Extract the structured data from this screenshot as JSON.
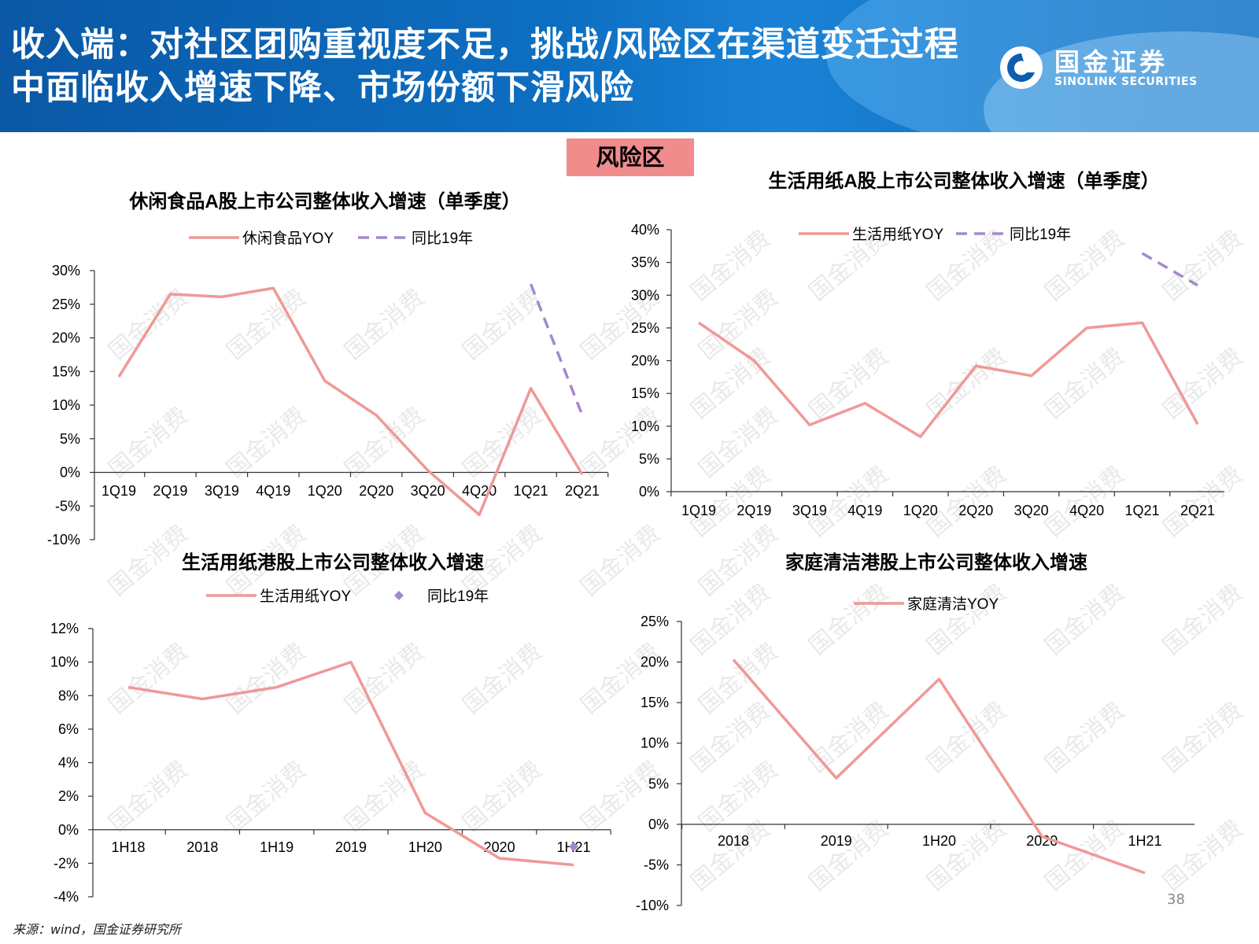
{
  "header": {
    "title": "收入端：对社区团购重视度不足，挑战/风险区在渠道变迁过程中面临收入增速下降、市场份额下滑风险",
    "logo_cn": "国金证券",
    "logo_en": "SINOLINK SECURITIES"
  },
  "risk_label": "风险区",
  "watermark": "国金消费",
  "source": "来源：wind，国金证券研究所",
  "page_number": "38",
  "colors": {
    "main_line": "#f09898",
    "compare_line": "#a488cc",
    "header": "#0b5fae",
    "risk_badge": "#f08c8c"
  },
  "chart_data": [
    {
      "type": "line",
      "title": "休闲食品A股上市公司整体收入增速（单季度）",
      "categories": [
        "1Q19",
        "2Q19",
        "3Q19",
        "4Q19",
        "1Q20",
        "2Q20",
        "3Q20",
        "4Q20",
        "1Q21",
        "2Q21"
      ],
      "yticks": [
        "30%",
        "25%",
        "20%",
        "15%",
        "10%",
        "5%",
        "0%",
        "-5%",
        "-10%"
      ],
      "ylim": [
        -10,
        30
      ],
      "series": [
        {
          "name": "休闲食品YOY",
          "style": "solid",
          "values": [
            14.2,
            26.5,
            26.1,
            27.4,
            13.6,
            8.5,
            0.3,
            -6.3,
            12.5,
            -0.3
          ]
        },
        {
          "name": "同比19年",
          "style": "dashed",
          "values": [
            null,
            null,
            null,
            null,
            null,
            null,
            null,
            null,
            28.0,
            8.5
          ]
        }
      ]
    },
    {
      "type": "line",
      "title": "生活用纸A股上市公司整体收入增速（单季度）",
      "categories": [
        "1Q19",
        "2Q19",
        "3Q19",
        "4Q19",
        "1Q20",
        "2Q20",
        "3Q20",
        "4Q20",
        "1Q21",
        "2Q21"
      ],
      "yticks": [
        "40%",
        "35%",
        "30%",
        "25%",
        "20%",
        "15%",
        "10%",
        "5%",
        "0%"
      ],
      "ylim": [
        0,
        40
      ],
      "series": [
        {
          "name": "生活用纸YOY",
          "style": "solid",
          "values": [
            25.8,
            20.0,
            10.2,
            13.5,
            8.4,
            19.2,
            17.7,
            25.0,
            25.8,
            10.3
          ]
        },
        {
          "name": "同比19年",
          "style": "dashed",
          "values": [
            null,
            null,
            null,
            null,
            null,
            null,
            null,
            null,
            36.4,
            31.5
          ]
        }
      ]
    },
    {
      "type": "line",
      "title": "生活用纸港股上市公司整体收入增速",
      "categories": [
        "1H18",
        "2018",
        "1H19",
        "2019",
        "1H20",
        "2020",
        "1H21"
      ],
      "yticks": [
        "12%",
        "10%",
        "8%",
        "6%",
        "4%",
        "2%",
        "0%",
        "-2%",
        "-4%"
      ],
      "ylim": [
        -4,
        12
      ],
      "series": [
        {
          "name": "生活用纸YOY",
          "style": "solid",
          "values": [
            8.5,
            7.8,
            8.5,
            10.0,
            1.0,
            -1.7,
            -2.1
          ]
        },
        {
          "name": "同比19年",
          "style": "marker",
          "values": [
            null,
            null,
            null,
            null,
            null,
            null,
            -1.0
          ]
        }
      ]
    },
    {
      "type": "line",
      "title": "家庭清洁港股上市公司整体收入增速",
      "categories": [
        "2018",
        "2019",
        "1H20",
        "2020",
        "1H21"
      ],
      "yticks": [
        "25%",
        "20%",
        "15%",
        "10%",
        "5%",
        "0%",
        "-5%",
        "-10%"
      ],
      "ylim": [
        -10,
        25
      ],
      "series": [
        {
          "name": "家庭清洁YOY",
          "style": "solid",
          "values": [
            20.3,
            5.7,
            17.9,
            -1.5,
            -6.0
          ]
        }
      ]
    }
  ]
}
